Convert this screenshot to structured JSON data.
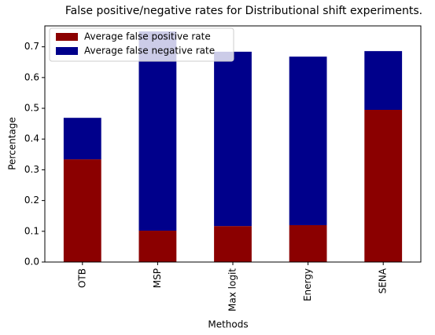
{
  "chart_data": {
    "type": "stacked_bar",
    "title": "False positive/negative rates for Distributional shift experiments.",
    "x_label": "Methods",
    "y_label": "Percentage",
    "categories": [
      "OTB",
      "MSP",
      "Max logit",
      "Energy",
      "SENA"
    ],
    "series": [
      {
        "name": "Average false positive rate",
        "color": "#8b0000",
        "values": [
          0.334,
          0.102,
          0.117,
          0.12,
          0.495
        ]
      },
      {
        "name": "Average false negative rate",
        "color": "#00008b",
        "values": [
          0.135,
          0.648,
          0.567,
          0.548,
          0.191
        ]
      }
    ],
    "ylim": [
      0,
      0.768
    ],
    "yticks": [
      {
        "value": 0,
        "label": "0.0"
      },
      0.1,
      0.2,
      0.3,
      0.4,
      0.5,
      0.6,
      0.7
    ],
    "legend": "upper left"
  }
}
